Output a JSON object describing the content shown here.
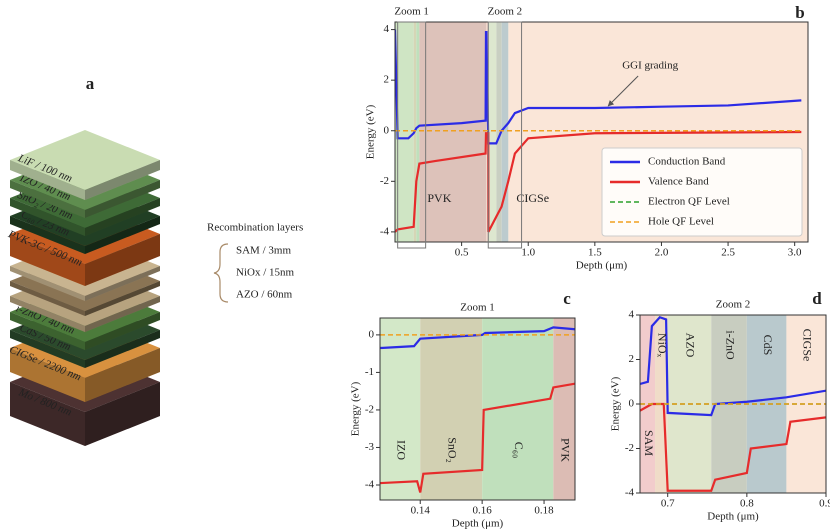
{
  "stack": {
    "panel_label": "a",
    "layers": [
      {
        "label": "LiF / 100 nm",
        "color": "#c9dcb2"
      },
      {
        "label": "IZO / 40 nm",
        "color": "#5f8d4f"
      },
      {
        "label": "SnO₂ / 20 nm",
        "color": "#3e6a36"
      },
      {
        "label": "C₆₀ / 23 nm",
        "color": "#213f24"
      },
      {
        "label": "PVK-3C / 500 nm",
        "color": "#c85b20"
      },
      {
        "color": "#c8b490"
      },
      {
        "color": "#8a7454"
      },
      {
        "color": "#b7a37f"
      },
      {
        "label": "i-ZnO / 40 nm",
        "color": "#4c7b3b"
      },
      {
        "label": "CdS / 50 nm",
        "color": "#2b4a2c"
      },
      {
        "label": "CIGSe / 2200 nm",
        "color": "#d8913f"
      },
      {
        "label": "Mo / 800 nm",
        "color": "#4d3232"
      }
    ],
    "recombination_title": "Recombination layers",
    "recombination_layers": [
      "SAM / 3mm",
      "NiOx / 15nm",
      "AZO / 60nm"
    ]
  },
  "chart_data": [
    {
      "type": "line",
      "panel_label": "b",
      "xlabel": "Depth (μm)",
      "ylabel": "Energy (eV)",
      "xlim": [
        0,
        3.1
      ],
      "ylim": [
        -4.4,
        4.3
      ],
      "xticks": [
        0.5,
        {
          "value": 1,
          "label": "1.0"
        },
        1.5,
        {
          "value": 2,
          "label": "2.0"
        },
        2.5,
        {
          "value": 3,
          "label": "3.0"
        }
      ],
      "yticks": [
        -4,
        -2,
        0,
        2,
        4
      ],
      "regions": [
        {
          "start": 0,
          "end": 0.14,
          "color": "#cfe5c4"
        },
        {
          "start": 0.14,
          "end": 0.16,
          "color": "#d5d6b6"
        },
        {
          "start": 0.16,
          "end": 0.183,
          "color": "#bfe0bc"
        },
        {
          "label": "PVK",
          "start": 0.183,
          "end": 0.683,
          "color": "#ddc2ba"
        },
        {
          "start": 0.683,
          "end": 0.701,
          "color": "#f2d8cc"
        },
        {
          "start": 0.701,
          "end": 0.761,
          "color": "#dde7cf"
        },
        {
          "start": 0.761,
          "end": 0.801,
          "color": "#c9cfc2"
        },
        {
          "start": 0.801,
          "end": 0.851,
          "color": "#bccbce"
        },
        {
          "label": "CIGSe",
          "start": 0.851,
          "end": 3.1,
          "color": "#fae6d8"
        }
      ],
      "region_label_y": -2.7,
      "zoom_boxes": [
        {
          "label": "Zoom 1",
          "xlim": [
            0.02,
            0.23
          ]
        },
        {
          "label": "Zoom 2",
          "xlim": [
            0.7,
            0.95
          ]
        }
      ],
      "annotation": {
        "text": "GGI grading",
        "xy": [
          1.6,
          0.9
        ]
      },
      "legend": "lower right",
      "series": [
        {
          "name": "Conduction Band",
          "color": "#2b2be6",
          "x": [
            0,
            0.02,
            0.1,
            0.14,
            0.16,
            0.183,
            0.5,
            0.68,
            0.683,
            0.686,
            0.7,
            0.76,
            0.8,
            0.85,
            0.9,
            1.0,
            1.5,
            2.0,
            2.5,
            3.05
          ],
          "values": [
            4.0,
            -0.3,
            -0.3,
            -0.1,
            0.1,
            0.2,
            0.3,
            0.4,
            3.9,
            3.9,
            -0.5,
            -0.5,
            0.0,
            0.3,
            0.7,
            0.9,
            0.9,
            0.95,
            1.0,
            1.2
          ]
        },
        {
          "name": "Valence Band",
          "color": "#e62b2b",
          "x": [
            0,
            0.02,
            0.14,
            0.16,
            0.183,
            0.3,
            0.68,
            0.683,
            0.7,
            0.701,
            0.76,
            0.8,
            0.85,
            0.9,
            1.0,
            1.5,
            3.05
          ],
          "values": [
            -4.0,
            -3.9,
            -3.8,
            -2.0,
            -1.3,
            -1.2,
            -0.9,
            -0.1,
            -0.1,
            -4.0,
            -3.4,
            -3.0,
            -2.0,
            -0.9,
            -0.3,
            -0.1,
            -0.05
          ]
        },
        {
          "name": "Electron QF Level",
          "color": "#2ca02c",
          "dashed": true,
          "x": [
            0,
            3.05
          ],
          "values": [
            0,
            0
          ]
        },
        {
          "name": "Hole QF Level",
          "color": "#f0a020",
          "dashed": true,
          "x": [
            0,
            3.05
          ],
          "values": [
            0,
            0
          ]
        }
      ]
    },
    {
      "type": "line",
      "panel_label": "c",
      "title": "Zoom 1",
      "xlabel": "Depth (μm)",
      "ylabel": "Energy (eV)",
      "xlim": [
        0.127,
        0.19
      ],
      "ylim": [
        -4.4,
        0.45
      ],
      "xticks": [
        0.14,
        0.16,
        0.18
      ],
      "yticks": [
        -4,
        -3,
        -2,
        -1,
        0
      ],
      "region_labels_vertical": true,
      "region_label_position": "bottom",
      "regions": [
        {
          "label": "IZO",
          "start": 0.127,
          "end": 0.14,
          "color": "#d3e8c8"
        },
        {
          "label": "SnO₂",
          "start": 0.14,
          "end": 0.16,
          "color": "#d2d0b2"
        },
        {
          "label": "C₆₀",
          "start": 0.16,
          "end": 0.183,
          "color": "#c0e0bc"
        },
        {
          "label": "PVK",
          "start": 0.183,
          "end": 0.19,
          "color": "#dcbcb4"
        }
      ],
      "series": [
        {
          "color": "#2b2be6",
          "x": [
            0.127,
            0.138,
            0.14,
            0.16,
            0.161,
            0.18,
            0.183,
            0.19
          ],
          "values": [
            -0.35,
            -0.3,
            -0.1,
            0.0,
            0.05,
            0.1,
            0.2,
            0.15
          ]
        },
        {
          "color": "#e62b2b",
          "x": [
            0.127,
            0.139,
            0.14,
            0.141,
            0.16,
            0.1605,
            0.182,
            0.183,
            0.19
          ],
          "values": [
            -3.95,
            -3.9,
            -4.2,
            -3.7,
            -3.6,
            -2.0,
            -1.7,
            -1.4,
            -1.3
          ]
        },
        {
          "color": "#f0a020",
          "dashed": true,
          "x": [
            0.127,
            0.19
          ],
          "values": [
            0,
            0
          ]
        }
      ]
    },
    {
      "type": "line",
      "panel_label": "d",
      "title": "Zoom 2",
      "xlabel": "Depth (μm)",
      "ylabel": "Energy (eV)",
      "xlim": [
        0.665,
        0.9
      ],
      "ylim": [
        -4,
        4
      ],
      "xticks": [
        0.7,
        0.8,
        0.9
      ],
      "yticks": [
        -4,
        -2,
        0,
        2,
        4
      ],
      "region_labels_vertical": true,
      "region_label_position": "top",
      "regions": [
        {
          "label": "SAM",
          "start": 0.665,
          "end": 0.684,
          "color": "#f2cccc",
          "label_position": "bottom"
        },
        {
          "label": "NiOₓ",
          "start": 0.684,
          "end": 0.7,
          "color": "#f0dcc8"
        },
        {
          "label": "AZO",
          "start": 0.7,
          "end": 0.755,
          "color": "#dfe6cc"
        },
        {
          "label": "i-ZnO",
          "start": 0.755,
          "end": 0.8,
          "color": "#c8cdc0"
        },
        {
          "label": "CdS",
          "start": 0.8,
          "end": 0.85,
          "color": "#b9c9cd"
        },
        {
          "label": "CIGSe",
          "start": 0.85,
          "end": 0.9,
          "color": "#fae6d8"
        }
      ],
      "series": [
        {
          "color": "#2b2be6",
          "x": [
            0.665,
            0.675,
            0.68,
            0.69,
            0.698,
            0.7,
            0.755,
            0.76,
            0.8,
            0.85,
            0.9
          ],
          "values": [
            0.9,
            1.0,
            3.5,
            3.9,
            3.8,
            -0.4,
            -0.5,
            0.0,
            0.1,
            0.3,
            0.6
          ]
        },
        {
          "color": "#e62b2b",
          "x": [
            0.665,
            0.68,
            0.695,
            0.7,
            0.755,
            0.76,
            0.8,
            0.805,
            0.85,
            0.855,
            0.9
          ],
          "values": [
            -0.3,
            0.0,
            0.0,
            -3.9,
            -3.9,
            -3.4,
            -3.1,
            -2.0,
            -1.8,
            -0.8,
            -0.6
          ]
        },
        {
          "color": "#2ca02c",
          "dashed": true,
          "x": [
            0.665,
            0.9
          ],
          "values": [
            0,
            0
          ]
        },
        {
          "color": "#f0a020",
          "dashed": true,
          "x": [
            0.665,
            0.9
          ],
          "values": [
            0,
            0
          ]
        }
      ]
    }
  ]
}
